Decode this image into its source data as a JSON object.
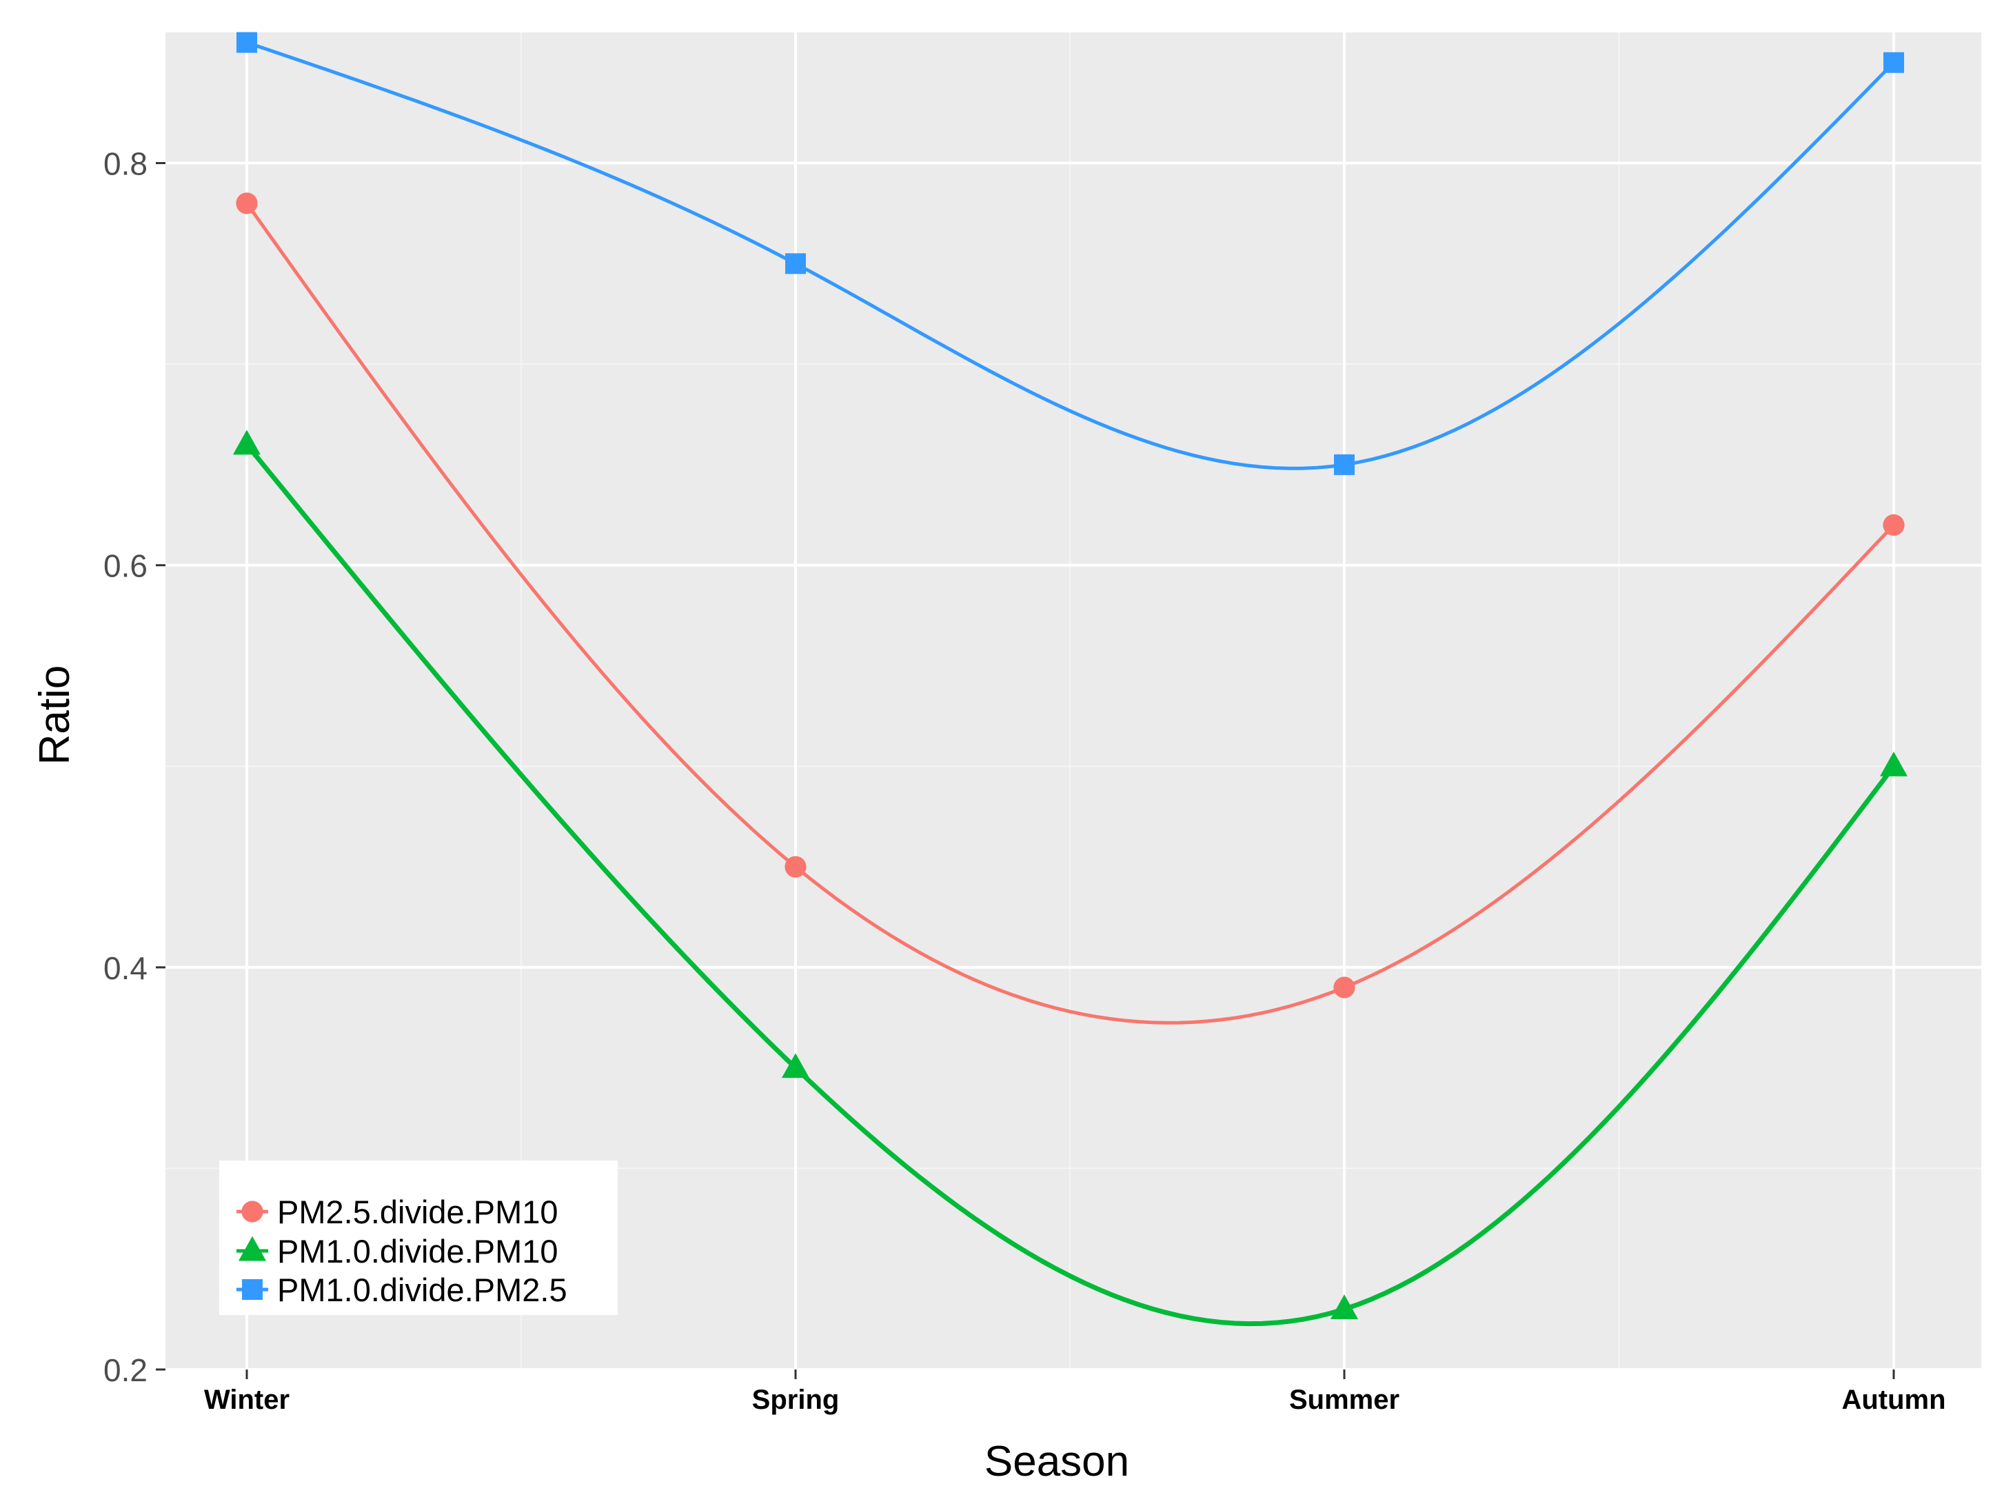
{
  "chart_data": {
    "type": "line",
    "xlabel": "Season",
    "ylabel": "Ratio",
    "categories": [
      "Winter",
      "Spring",
      "Summer",
      "Autumn"
    ],
    "ylim": [
      0.2,
      0.865
    ],
    "yticks": [
      0.2,
      0.4,
      0.6,
      0.8
    ],
    "ytick_labels": [
      "0.2",
      "0.4",
      "0.6",
      "0.8"
    ],
    "grid": true,
    "smooth": true,
    "legend_position": "bottom-left",
    "background_color": "#ebebeb",
    "grid_color": "#ffffff",
    "series": [
      {
        "name": "PM2.5.divide.PM10",
        "color": "#f8766d",
        "marker": "circle",
        "values": [
          0.78,
          0.45,
          0.39,
          0.62
        ]
      },
      {
        "name": "PM1.0.divide.PM10",
        "color": "#00ba38",
        "marker": "triangle",
        "values": [
          0.66,
          0.35,
          0.23,
          0.5
        ]
      },
      {
        "name": "PM1.0.divide.PM2.5",
        "color": "#3399ff",
        "marker": "square",
        "values": [
          0.86,
          0.75,
          0.65,
          0.85
        ]
      }
    ]
  }
}
